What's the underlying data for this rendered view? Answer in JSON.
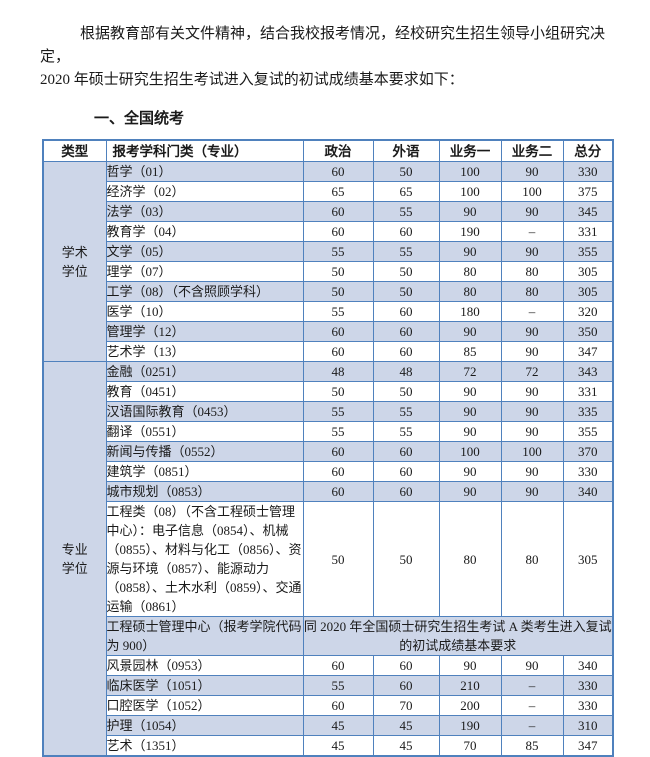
{
  "page": {
    "intro_line1": "根据教育部有关文件精神，结合我校报考情况，经校研究生招生领导小组研究决定，",
    "intro_line2": "2020 年硕士研究生招生考试进入复试的初试成绩基本要求如下：",
    "section_heading": "一、全国统考"
  },
  "colors": {
    "border": "#4f81bd",
    "row_shade": "#cdd6e8",
    "text": "#1a1a1a"
  },
  "table": {
    "headers": [
      "类型",
      "报考学科门类（专业）",
      "政治",
      "外语",
      "业务一",
      "业务二",
      "总分"
    ],
    "groups": [
      {
        "type": "学术\n学位",
        "rows": [
          {
            "subject": "哲学（01）",
            "scores": [
              "60",
              "50",
              "100",
              "90",
              "330"
            ]
          },
          {
            "subject": "经济学（02）",
            "scores": [
              "65",
              "65",
              "100",
              "100",
              "375"
            ]
          },
          {
            "subject": "法学（03）",
            "scores": [
              "60",
              "55",
              "90",
              "90",
              "345"
            ]
          },
          {
            "subject": "教育学（04）",
            "scores": [
              "60",
              "60",
              "190",
              "–",
              "331"
            ]
          },
          {
            "subject": "文学（05）",
            "scores": [
              "55",
              "55",
              "90",
              "90",
              "355"
            ]
          },
          {
            "subject": "理学（07）",
            "scores": [
              "50",
              "50",
              "80",
              "80",
              "305"
            ]
          },
          {
            "subject": "工学（08）（不含照顾学科）",
            "scores": [
              "50",
              "50",
              "80",
              "80",
              "305"
            ]
          },
          {
            "subject": "医学（10）",
            "scores": [
              "55",
              "60",
              "180",
              "–",
              "320"
            ]
          },
          {
            "subject": "管理学（12）",
            "scores": [
              "60",
              "60",
              "90",
              "90",
              "350"
            ]
          },
          {
            "subject": "艺术学（13）",
            "scores": [
              "60",
              "60",
              "85",
              "90",
              "347"
            ]
          }
        ]
      },
      {
        "type": "专业\n学位",
        "rows": [
          {
            "subject": "金融（0251）",
            "scores": [
              "48",
              "48",
              "72",
              "72",
              "343"
            ]
          },
          {
            "subject": "教育（0451）",
            "scores": [
              "50",
              "50",
              "90",
              "90",
              "331"
            ]
          },
          {
            "subject": "汉语国际教育（0453）",
            "scores": [
              "55",
              "55",
              "90",
              "90",
              "335"
            ]
          },
          {
            "subject": "翻译（0551）",
            "scores": [
              "55",
              "55",
              "90",
              "90",
              "355"
            ]
          },
          {
            "subject": "新闻与传播（0552）",
            "scores": [
              "60",
              "60",
              "100",
              "100",
              "370"
            ]
          },
          {
            "subject": "建筑学（0851）",
            "scores": [
              "60",
              "60",
              "90",
              "90",
              "330"
            ]
          },
          {
            "subject": "城市规划（0853）",
            "scores": [
              "60",
              "60",
              "90",
              "90",
              "340"
            ]
          },
          {
            "subject": "工程类（08）（不含工程硕士管理中心）：电子信息（0854）、机械（0855）、材料与化工（0856）、资源与环境（0857）、能源动力（0858）、土木水利（0859）、交通运输（0861）",
            "scores": [
              "50",
              "50",
              "80",
              "80",
              "305"
            ]
          },
          {
            "subject": "工程硕士管理中心（报考学院代码为 900）",
            "merged": "同 2020 年全国硕士研究生招生考试 A 类考生进入复试的初试成绩基本要求"
          },
          {
            "subject": "风景园林（0953）",
            "scores": [
              "60",
              "60",
              "90",
              "90",
              "340"
            ]
          },
          {
            "subject": "临床医学（1051）",
            "scores": [
              "55",
              "60",
              "210",
              "–",
              "330"
            ]
          },
          {
            "subject": "口腔医学（1052）",
            "scores": [
              "60",
              "70",
              "200",
              "–",
              "330"
            ]
          },
          {
            "subject": "护理（1054）",
            "scores": [
              "45",
              "45",
              "190",
              "–",
              "310"
            ]
          },
          {
            "subject": "艺术（1351）",
            "scores": [
              "45",
              "45",
              "70",
              "85",
              "347"
            ]
          }
        ]
      }
    ]
  }
}
